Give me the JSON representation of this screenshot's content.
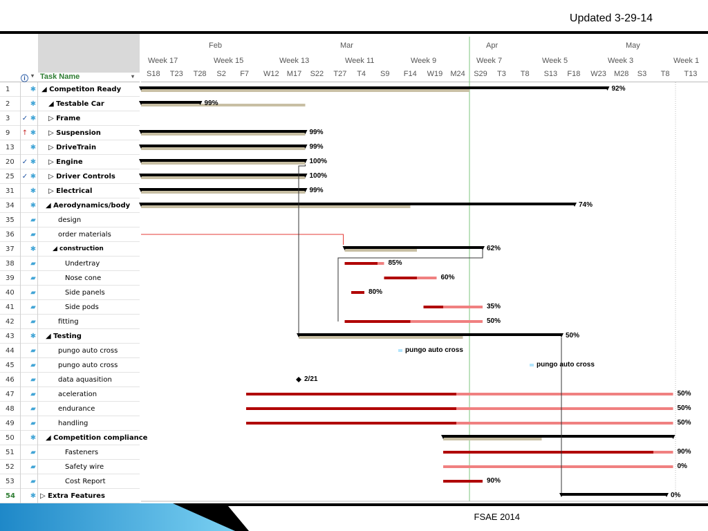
{
  "slide": {
    "updated": "Updated 3-29-14",
    "footer": "FSAE 2014"
  },
  "columns": {
    "task_name": "Task Name",
    "info_icon": "info-icon"
  },
  "timescale": {
    "months": [
      "Feb",
      "Mar",
      "Apr",
      "May"
    ],
    "weeks": [
      "Week 17",
      "Week 15",
      "Week 13",
      "Week 11",
      "Week 9",
      "Week 7",
      "Week 5",
      "Week 3",
      "Week 1"
    ],
    "days": [
      "S18",
      "T23",
      "T28",
      "S2",
      "F7",
      "W12",
      "M17",
      "S22",
      "T27",
      "T4",
      "S9",
      "F14",
      "W19",
      "M24",
      "S29",
      "T3",
      "T8",
      "S13",
      "F18",
      "W23",
      "M28",
      "S3",
      "T8",
      "T13"
    ]
  },
  "tasks": [
    {
      "id": "1",
      "name": "Competiton Ready",
      "summary": true,
      "prefix": "◢",
      "check": false
    },
    {
      "id": "2",
      "name": "Testable Car",
      "summary": true,
      "prefix": "◢",
      "check": false
    },
    {
      "id": "3",
      "name": "Frame",
      "summary": true,
      "prefix": "▷",
      "check": true
    },
    {
      "id": "9",
      "name": "Suspension",
      "summary": true,
      "prefix": "▷",
      "check": false,
      "person": true
    },
    {
      "id": "13",
      "name": "DriveTrain",
      "summary": true,
      "prefix": "▷",
      "check": false
    },
    {
      "id": "20",
      "name": "Engine",
      "summary": true,
      "prefix": "▷",
      "check": true
    },
    {
      "id": "25",
      "name": "Driver Controls",
      "summary": true,
      "prefix": "▷",
      "check": true
    },
    {
      "id": "31",
      "name": "Electrical",
      "summary": true,
      "prefix": "▷",
      "check": false
    },
    {
      "id": "34",
      "name": "Aerodynamics/body",
      "summary": true,
      "prefix": "◢",
      "check": false
    },
    {
      "id": "35",
      "name": "design",
      "summary": false,
      "check": false
    },
    {
      "id": "36",
      "name": "order materials",
      "summary": false,
      "check": false
    },
    {
      "id": "37",
      "name": "construction",
      "summary": true,
      "small": true,
      "prefix": "◢",
      "check": false
    },
    {
      "id": "38",
      "name": "Undertray",
      "summary": false,
      "check": false
    },
    {
      "id": "39",
      "name": "Nose cone",
      "summary": false,
      "check": false
    },
    {
      "id": "40",
      "name": "Side panels",
      "summary": false,
      "check": false
    },
    {
      "id": "41",
      "name": "Side pods",
      "summary": false,
      "check": false
    },
    {
      "id": "42",
      "name": "fitting",
      "summary": false,
      "check": false
    },
    {
      "id": "43",
      "name": "Testing",
      "summary": true,
      "prefix": "◢",
      "check": false
    },
    {
      "id": "44",
      "name": "pungo auto cross",
      "summary": false,
      "check": false
    },
    {
      "id": "45",
      "name": "pungo auto cross",
      "summary": false,
      "check": false
    },
    {
      "id": "46",
      "name": "data aquasition",
      "summary": false,
      "check": false
    },
    {
      "id": "47",
      "name": "aceleration",
      "summary": false,
      "check": false
    },
    {
      "id": "48",
      "name": "endurance",
      "summary": false,
      "check": false
    },
    {
      "id": "49",
      "name": "handling",
      "summary": false,
      "check": false
    },
    {
      "id": "50",
      "name": "Competition compliance",
      "summary": true,
      "prefix": "◢",
      "check": false
    },
    {
      "id": "51",
      "name": "Fasteners",
      "summary": false,
      "check": false
    },
    {
      "id": "52",
      "name": "Safety wire",
      "summary": false,
      "check": false
    },
    {
      "id": "53",
      "name": "Cost Report",
      "summary": false,
      "check": false
    },
    {
      "id": "54",
      "name": "Extra Features",
      "summary": true,
      "prefix": "▷",
      "check": false
    }
  ],
  "bars": [
    {
      "row": 0,
      "kind": "summary",
      "start_day": 0,
      "end_day": 71,
      "progress_day": 50,
      "label": "92%"
    },
    {
      "row": 1,
      "kind": "summary",
      "start_day": 0,
      "end_day": 9,
      "progress_day": 25,
      "label": "99%"
    },
    {
      "row": 3,
      "kind": "summary",
      "start_day": 0,
      "end_day": 25,
      "progress_day": 25,
      "label": "99%"
    },
    {
      "row": 4,
      "kind": "summary",
      "start_day": 0,
      "end_day": 25,
      "progress_day": 25,
      "label": "99%"
    },
    {
      "row": 5,
      "kind": "summary",
      "start_day": 0,
      "end_day": 25,
      "progress_day": 25,
      "label": "100%"
    },
    {
      "row": 6,
      "kind": "summary",
      "start_day": 0,
      "end_day": 25,
      "progress_day": 25,
      "label": "100%"
    },
    {
      "row": 7,
      "kind": "summary",
      "start_day": 0,
      "end_day": 25,
      "progress_day": 25,
      "label": "99%"
    },
    {
      "row": 8,
      "kind": "summary",
      "start_day": 0,
      "end_day": 66,
      "progress_day": 41,
      "label": "74%"
    },
    {
      "row": 11,
      "kind": "summary",
      "start_day": 31,
      "end_day": 52,
      "progress_day": 42,
      "label": "62%"
    },
    {
      "row": 12,
      "kind": "task",
      "start_day": 31,
      "end_day": 37,
      "progress_day": 36,
      "label": "85%"
    },
    {
      "row": 13,
      "kind": "task",
      "start_day": 37,
      "end_day": 45,
      "progress_day": 42,
      "label": "60%"
    },
    {
      "row": 14,
      "kind": "task",
      "start_day": 32,
      "end_day": 34,
      "progress_day": 34,
      "label": "80%"
    },
    {
      "row": 15,
      "kind": "task",
      "start_day": 43,
      "end_day": 52,
      "progress_day": 46,
      "label": "35%"
    },
    {
      "row": 16,
      "kind": "task",
      "start_day": 31,
      "end_day": 52,
      "progress_day": 41,
      "label": "50%"
    },
    {
      "row": 17,
      "kind": "summary",
      "start_day": 24,
      "end_day": 64,
      "progress_day": 49,
      "label": "50%"
    },
    {
      "row": 24,
      "kind": "summary",
      "start_day": 46,
      "end_day": 81,
      "progress_day": 61,
      "label": ""
    },
    {
      "row": 25,
      "kind": "task",
      "start_day": 46,
      "end_day": 81,
      "progress_day": 78,
      "label": "90%"
    },
    {
      "row": 26,
      "kind": "task",
      "start_day": 46,
      "end_day": 81,
      "progress_day": 46,
      "label": "0%"
    },
    {
      "row": 27,
      "kind": "task",
      "start_day": 46,
      "end_day": 52,
      "progress_day": 52,
      "label": "90%"
    },
    {
      "row": 21,
      "kind": "task",
      "start_day": 16,
      "end_day": 81,
      "progress_day": 48,
      "label": "50%"
    },
    {
      "row": 22,
      "kind": "task",
      "start_day": 16,
      "end_day": 81,
      "progress_day": 48,
      "label": "50%"
    },
    {
      "row": 23,
      "kind": "task",
      "start_day": 16,
      "end_day": 81,
      "progress_day": 48,
      "label": "50%"
    },
    {
      "row": 28,
      "kind": "summary",
      "start_day": 64,
      "end_day": 80,
      "progress_day": 64,
      "label": "0%"
    }
  ],
  "markers": [
    {
      "row": 18,
      "day": 40,
      "label": "pungo auto cross"
    },
    {
      "row": 19,
      "day": 60,
      "label": "pungo auto cross"
    }
  ],
  "milestones": [
    {
      "row": 20,
      "day": 24,
      "label": "2/21"
    }
  ]
}
